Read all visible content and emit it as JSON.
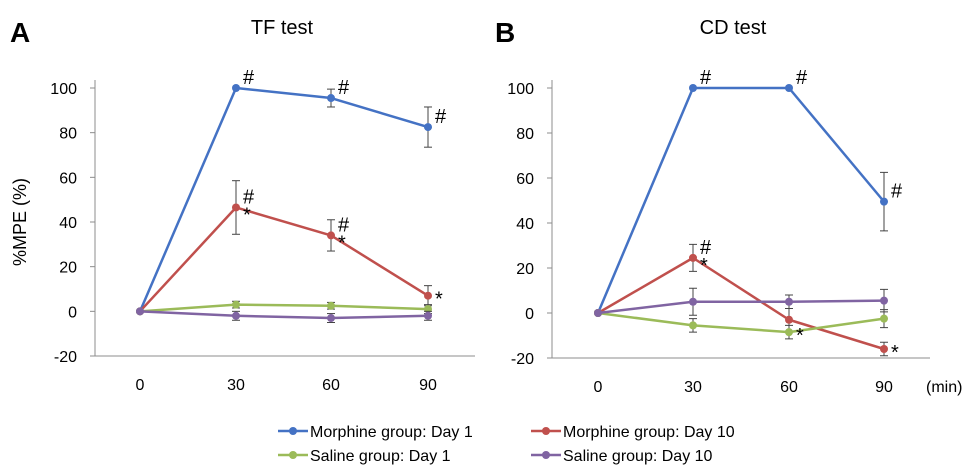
{
  "legend": [
    {
      "name": "Morphine group: Day 1",
      "color": "#4472c4"
    },
    {
      "name": "Morphine group: Day 10",
      "color": "#c0504d"
    },
    {
      "name": "Saline group: Day 1",
      "color": "#9bbb59"
    },
    {
      "name": "Saline group: Day 10",
      "color": "#8064a2"
    }
  ],
  "chart_data": [
    {
      "type": "line",
      "panel_label": "A",
      "title": "TF test",
      "ylabel": "%MPE (%)",
      "xunit": "",
      "x": [
        0,
        30,
        60,
        90
      ],
      "x_ticks": [
        "0",
        "30",
        "60",
        "90"
      ],
      "ylim": [
        -20,
        100
      ],
      "y_ticks": [
        "-20",
        "0",
        "20",
        "40",
        "60",
        "80",
        "100"
      ],
      "grid": false,
      "legend_position": "bottom",
      "series": [
        {
          "name": "Morphine group: Day 1",
          "color": "#4472c4",
          "values": [
            0,
            100,
            95.5,
            82.5
          ],
          "errors": [
            0,
            0,
            4,
            9
          ],
          "marks": [
            "",
            "#",
            "#",
            "#"
          ]
        },
        {
          "name": "Morphine group: Day 10",
          "color": "#c0504d",
          "values": [
            0,
            46.5,
            34,
            7
          ],
          "errors": [
            0,
            12,
            7,
            4.5
          ],
          "marks": [
            "",
            "#*",
            "#*",
            "*"
          ]
        },
        {
          "name": "Saline group: Day 1",
          "color": "#9bbb59",
          "values": [
            0,
            3,
            2.5,
            1
          ],
          "errors": [
            0,
            1.5,
            1.5,
            2
          ],
          "marks": [
            "",
            "",
            "",
            ""
          ]
        },
        {
          "name": "Saline group: Day 10",
          "color": "#8064a2",
          "values": [
            0,
            -2,
            -3,
            -2
          ],
          "errors": [
            0,
            2,
            2,
            2
          ],
          "marks": [
            "",
            "",
            "",
            ""
          ]
        }
      ]
    },
    {
      "type": "line",
      "panel_label": "B",
      "title": "CD test",
      "ylabel": "",
      "xunit": "(min)",
      "x": [
        0,
        30,
        60,
        90
      ],
      "x_ticks": [
        "0",
        "30",
        "60",
        "90"
      ],
      "ylim": [
        -20,
        100
      ],
      "y_ticks": [
        "-20",
        "0",
        "20",
        "40",
        "60",
        "80",
        "100"
      ],
      "grid": false,
      "legend_position": "bottom",
      "series": [
        {
          "name": "Morphine group: Day 1",
          "color": "#4472c4",
          "values": [
            0,
            100,
            100,
            49.5
          ],
          "errors": [
            0,
            0,
            0,
            13
          ],
          "marks": [
            "",
            "#",
            "#",
            "#"
          ]
        },
        {
          "name": "Morphine group: Day 10",
          "color": "#c0504d",
          "values": [
            0,
            24.5,
            -3,
            -16
          ],
          "errors": [
            0,
            6,
            5,
            3
          ],
          "marks": [
            "",
            "#*",
            "",
            "*"
          ]
        },
        {
          "name": "Saline group: Day 1",
          "color": "#9bbb59",
          "values": [
            0,
            -5.5,
            -8.5,
            -2.5
          ],
          "errors": [
            0,
            3,
            3,
            4
          ],
          "marks": [
            "",
            "",
            "*",
            ""
          ]
        },
        {
          "name": "Saline group: Day 10",
          "color": "#8064a2",
          "values": [
            0,
            5,
            5,
            5.5
          ],
          "errors": [
            0,
            6,
            3,
            5
          ],
          "marks": [
            "",
            "",
            "",
            ""
          ]
        }
      ]
    }
  ]
}
